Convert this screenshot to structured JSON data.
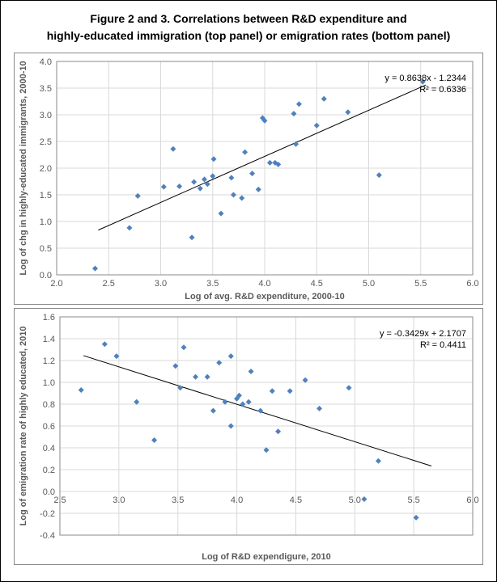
{
  "title_line1": "Figure 2 and 3. Correlations between R&D expenditure and",
  "title_line2": "highly-educated immigration (top panel) or emigration rates (bottom panel)",
  "title_fontsize": 14,
  "top_chart": {
    "type": "scatter",
    "xlabel": "Log of avg. R&D expenditure, 2000-10",
    "ylabel": "Log of chg in highly-educated immigrants, 2000-10",
    "xlim": [
      2.0,
      6.0
    ],
    "ylim": [
      0.0,
      4.0
    ],
    "xtick_step": 0.5,
    "ytick_step": 0.5,
    "xtick_decimals": 1,
    "ytick_decimals": 1,
    "grid_color": "#d9d9d9",
    "background_color": "#ffffff",
    "marker_color": "#4f81bd",
    "marker_size": 7,
    "label_fontsize": 11,
    "tick_fontsize": 11,
    "equation_line1": "y = 0.8638x - 1.2344",
    "equation_line2": "R² = 0.6336",
    "trend_x1": 2.4,
    "trend_x2": 5.55,
    "trend_slope": 0.8638,
    "trend_intercept": -1.2344,
    "points": [
      [
        2.37,
        0.12
      ],
      [
        2.7,
        0.88
      ],
      [
        2.78,
        1.48
      ],
      [
        3.03,
        1.65
      ],
      [
        3.12,
        2.36
      ],
      [
        3.18,
        1.66
      ],
      [
        3.3,
        0.7
      ],
      [
        3.32,
        1.74
      ],
      [
        3.38,
        1.62
      ],
      [
        3.42,
        1.79
      ],
      [
        3.45,
        1.7
      ],
      [
        3.5,
        1.85
      ],
      [
        3.51,
        2.17
      ],
      [
        3.58,
        1.15
      ],
      [
        3.68,
        1.82
      ],
      [
        3.7,
        1.5
      ],
      [
        3.78,
        1.44
      ],
      [
        3.81,
        2.3
      ],
      [
        3.88,
        1.9
      ],
      [
        3.94,
        1.6
      ],
      [
        3.98,
        2.94
      ],
      [
        4.0,
        2.89
      ],
      [
        4.05,
        2.1
      ],
      [
        4.1,
        2.1
      ],
      [
        4.13,
        2.07
      ],
      [
        4.28,
        3.02
      ],
      [
        4.3,
        2.45
      ],
      [
        4.33,
        3.2
      ],
      [
        4.5,
        2.8
      ],
      [
        4.57,
        3.3
      ],
      [
        4.8,
        3.05
      ],
      [
        5.1,
        1.87
      ],
      [
        5.52,
        3.62
      ]
    ]
  },
  "bottom_chart": {
    "type": "scatter",
    "xlabel": "Log of R&D expendigure, 2010",
    "ylabel": "Log of emigration rate of highly educated, 2010",
    "xlim": [
      2.5,
      6.0
    ],
    "ylim": [
      -0.4,
      1.6
    ],
    "xtick_step": 0.5,
    "ytick_step": 0.2,
    "xtick_decimals": 1,
    "ytick_decimals": 1,
    "grid_color": "#d9d9d9",
    "background_color": "#ffffff",
    "marker_color": "#4f81bd",
    "marker_size": 7,
    "label_fontsize": 11,
    "tick_fontsize": 11,
    "equation_line1": "y = -0.3429x + 2.1707",
    "equation_line2": "R² = 0.4411",
    "trend_x1": 2.7,
    "trend_x2": 5.65,
    "trend_slope": -0.3429,
    "trend_intercept": 2.1707,
    "points": [
      [
        2.68,
        0.93
      ],
      [
        2.88,
        1.35
      ],
      [
        2.98,
        1.24
      ],
      [
        3.15,
        0.82
      ],
      [
        3.3,
        0.47
      ],
      [
        3.48,
        1.15
      ],
      [
        3.52,
        0.95
      ],
      [
        3.55,
        1.32
      ],
      [
        3.65,
        1.05
      ],
      [
        3.75,
        1.05
      ],
      [
        3.8,
        0.74
      ],
      [
        3.85,
        1.18
      ],
      [
        3.9,
        0.82
      ],
      [
        3.95,
        0.6
      ],
      [
        3.95,
        1.24
      ],
      [
        4.0,
        0.85
      ],
      [
        4.02,
        0.88
      ],
      [
        4.05,
        0.8
      ],
      [
        4.1,
        0.82
      ],
      [
        4.12,
        1.1
      ],
      [
        4.2,
        0.74
      ],
      [
        4.25,
        0.38
      ],
      [
        4.3,
        0.92
      ],
      [
        4.35,
        0.55
      ],
      [
        4.45,
        0.92
      ],
      [
        4.58,
        1.02
      ],
      [
        4.7,
        0.76
      ],
      [
        4.95,
        0.95
      ],
      [
        5.08,
        -0.07
      ],
      [
        5.2,
        0.28
      ],
      [
        5.52,
        -0.24
      ]
    ]
  }
}
